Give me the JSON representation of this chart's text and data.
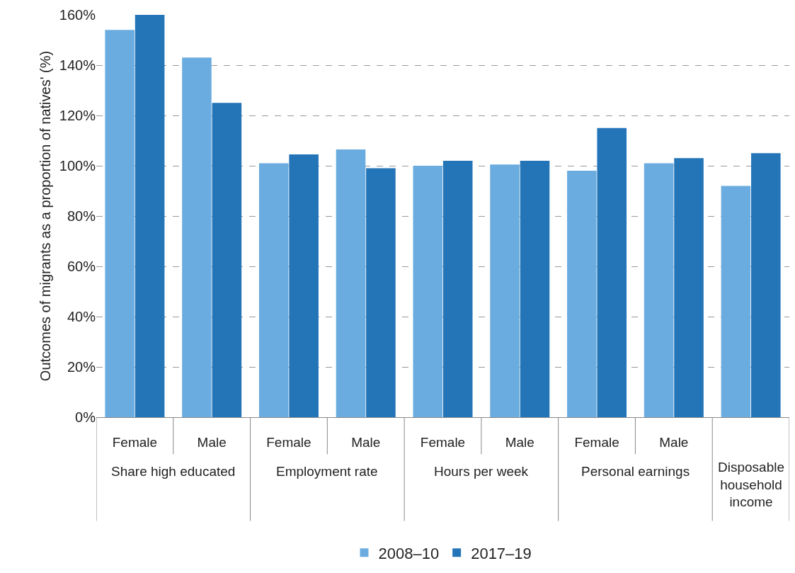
{
  "chart_data": {
    "type": "bar",
    "ylabel": "Outcomes of migrants as a proportion of natives' (%)",
    "categories": [
      "Female",
      "Male",
      "Female",
      "Male",
      "Female",
      "Male",
      "Female",
      "Male",
      null
    ],
    "series": [
      {
        "name": "2008–10",
        "color": "#6aace0",
        "values": [
          154,
          143,
          101,
          106.5,
          100,
          100.5,
          98,
          101,
          92
        ]
      },
      {
        "name": "2017–19",
        "color": "#2474b8",
        "values": [
          160,
          125,
          104.5,
          99,
          102,
          102,
          115,
          103,
          105
        ]
      }
    ],
    "annotations": [
      "Share high educated",
      "Employment rate",
      "Hours per week",
      "Personal earnings",
      "Disposable household income"
    ],
    "ylim": [
      0,
      160
    ],
    "yticks": [
      {
        "value": 0,
        "label": "0%"
      },
      {
        "value": 20,
        "label": "20%"
      },
      {
        "value": 40,
        "label": "40%"
      },
      {
        "value": 60,
        "label": "60%"
      },
      {
        "value": 80,
        "label": "80%"
      },
      {
        "value": 100,
        "label": "100%"
      },
      {
        "value": 120,
        "label": "120%"
      },
      {
        "value": 140,
        "label": "140%"
      },
      {
        "value": 160,
        "label": "160%"
      }
    ],
    "grid": "y",
    "legend": "bottom"
  }
}
